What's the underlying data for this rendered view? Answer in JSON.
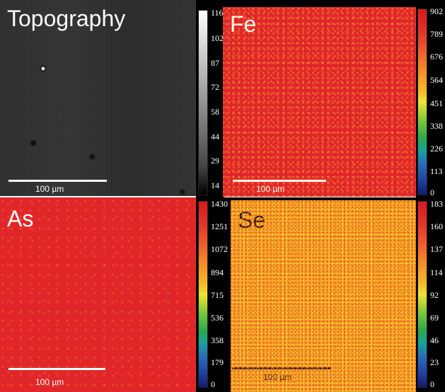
{
  "panels": {
    "topography": {
      "label": "Topography",
      "scale": "100 µm",
      "colorbar_ticks": [
        "116",
        "102",
        "87",
        "72",
        "58",
        "44",
        "29",
        "14"
      ]
    },
    "fe": {
      "label": "Fe",
      "scale": "100 µm",
      "colorbar_ticks": [
        "902",
        "789",
        "676",
        "564",
        "451",
        "338",
        "226",
        "113",
        "0"
      ]
    },
    "as": {
      "label": "As",
      "scale": "100 µm",
      "colorbar_ticks": [
        "1430",
        "1251",
        "1072",
        "894",
        "715",
        "536",
        "358",
        "179",
        "0"
      ]
    },
    "se": {
      "label": "Se",
      "scale": "100 µm",
      "colorbar_ticks": [
        "183",
        "160",
        "137",
        "114",
        "92",
        "69",
        "46",
        "23",
        "0"
      ]
    }
  },
  "colors": {
    "map_red": "#e0262b",
    "map_yellow": "#f5b82a",
    "topo_gray": "#303030"
  }
}
